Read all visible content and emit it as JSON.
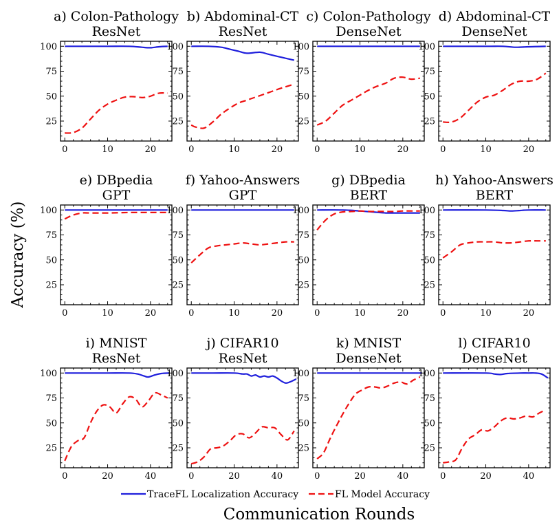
{
  "figure": {
    "ylabel": "Accuracy (%)",
    "xlabel": "Communication Rounds",
    "legend": [
      {
        "label": "TraceFL Localization Accuracy",
        "color": "#1f1fdc",
        "style": "solid"
      },
      {
        "label": "FL Model Accuracy",
        "color": "#ee1111",
        "style": "dashed"
      }
    ],
    "colors": {
      "traceFL": "#1f1fdc",
      "flModel": "#ee1111"
    }
  },
  "chart_data": [
    {
      "type": "line",
      "title_line1": "a) Colon-Pathology",
      "title_line2": "ResNet",
      "xlim": [
        -1,
        25
      ],
      "ylim": [
        5,
        105
      ],
      "xticks": [
        0,
        10,
        20
      ],
      "yticks": [
        25,
        50,
        75,
        100
      ],
      "series": [
        {
          "name": "TraceFL Localization Accuracy",
          "x": [
            0,
            5,
            10,
            15,
            18,
            20,
            22,
            24
          ],
          "y": [
            100,
            100,
            100,
            100,
            99,
            98.5,
            99.5,
            100
          ]
        },
        {
          "name": "FL Model Accuracy",
          "x": [
            0,
            2,
            4,
            6,
            8,
            10,
            12,
            14,
            16,
            18,
            19,
            20,
            22,
            24
          ],
          "y": [
            13,
            13.5,
            18,
            27,
            36,
            42,
            46,
            49,
            49.5,
            48.5,
            49,
            50,
            53,
            53
          ]
        }
      ]
    },
    {
      "type": "line",
      "title_line1": "b) Abdominal-CT",
      "title_line2": "ResNet",
      "xlim": [
        -1,
        25
      ],
      "ylim": [
        5,
        105
      ],
      "xticks": [
        0,
        10,
        20
      ],
      "yticks": [
        25,
        50,
        75,
        100
      ],
      "series": [
        {
          "name": "TraceFL Localization Accuracy",
          "x": [
            0,
            4,
            7,
            9,
            11,
            13,
            16,
            18,
            20,
            22,
            24
          ],
          "y": [
            100,
            100,
            99,
            97,
            95,
            93,
            94,
            92,
            90,
            88,
            86
          ]
        },
        {
          "name": "FL Model Accuracy",
          "x": [
            0,
            1,
            3,
            5,
            7,
            9,
            11,
            13,
            15,
            17,
            19,
            21,
            24
          ],
          "y": [
            21,
            19,
            18,
            24,
            32,
            38,
            43,
            46,
            49,
            52,
            55,
            58,
            62
          ]
        }
      ]
    },
    {
      "type": "line",
      "title_line1": "c) Colon-Pathology",
      "title_line2": "DenseNet",
      "xlim": [
        -1,
        25
      ],
      "ylim": [
        5,
        105
      ],
      "xticks": [
        0,
        10,
        20
      ],
      "yticks": [
        25,
        50,
        75,
        100
      ],
      "series": [
        {
          "name": "TraceFL Localization Accuracy",
          "x": [
            0,
            24
          ],
          "y": [
            100,
            100
          ]
        },
        {
          "name": "FL Model Accuracy",
          "x": [
            0,
            2,
            4,
            6,
            8,
            10,
            12,
            14,
            16,
            18,
            20,
            22,
            24
          ],
          "y": [
            21,
            25,
            33,
            41,
            46,
            51,
            56,
            60,
            63,
            68,
            69,
            67,
            68
          ]
        }
      ]
    },
    {
      "type": "line",
      "title_line1": "d) Abdominal-CT",
      "title_line2": "DenseNet",
      "xlim": [
        -1,
        25
      ],
      "ylim": [
        5,
        105
      ],
      "xticks": [
        0,
        10,
        20
      ],
      "yticks": [
        25,
        50,
        75,
        100
      ],
      "series": [
        {
          "name": "TraceFL Localization Accuracy",
          "x": [
            0,
            10,
            14,
            17,
            20,
            24
          ],
          "y": [
            100,
            100,
            100,
            99,
            99.5,
            100
          ]
        },
        {
          "name": "FL Model Accuracy",
          "x": [
            0,
            2,
            4,
            6,
            8,
            10,
            12,
            14,
            16,
            18,
            20,
            22,
            24
          ],
          "y": [
            24,
            24,
            28,
            36,
            44,
            49,
            51,
            56,
            62,
            65,
            65,
            67,
            73
          ]
        }
      ]
    },
    {
      "type": "line",
      "title_line1": "e) DBpedia",
      "title_line2": "GPT",
      "xlim": [
        -1,
        25
      ],
      "ylim": [
        5,
        105
      ],
      "xticks": [
        0,
        10,
        20
      ],
      "yticks": [
        25,
        50,
        75,
        100
      ],
      "series": [
        {
          "name": "TraceFL Localization Accuracy",
          "x": [
            0,
            24
          ],
          "y": [
            100,
            100
          ]
        },
        {
          "name": "FL Model Accuracy",
          "x": [
            0,
            2,
            4,
            6,
            10,
            15,
            20,
            24
          ],
          "y": [
            91,
            95,
            97,
            97,
            97,
            97.5,
            97.5,
            97.5
          ]
        }
      ]
    },
    {
      "type": "line",
      "title_line1": "f) Yahoo-Answers",
      "title_line2": "GPT",
      "xlim": [
        -1,
        25
      ],
      "ylim": [
        5,
        105
      ],
      "xticks": [
        0,
        10,
        20
      ],
      "yticks": [
        25,
        50,
        75,
        100
      ],
      "series": [
        {
          "name": "TraceFL Localization Accuracy",
          "x": [
            0,
            24
          ],
          "y": [
            100,
            100
          ]
        },
        {
          "name": "FL Model Accuracy",
          "x": [
            0,
            2,
            4,
            6,
            8,
            10,
            12,
            14,
            16,
            18,
            20,
            22,
            24
          ],
          "y": [
            47,
            55,
            62,
            64,
            65,
            66,
            67,
            66,
            65,
            66,
            67,
            68,
            68
          ]
        }
      ]
    },
    {
      "type": "line",
      "title_line1": "g) DBpedia",
      "title_line2": "BERT",
      "xlim": [
        -1,
        25
      ],
      "ylim": [
        5,
        105
      ],
      "xticks": [
        0,
        10,
        20
      ],
      "yticks": [
        25,
        50,
        75,
        100
      ],
      "series": [
        {
          "name": "TraceFL Localization Accuracy",
          "x": [
            0,
            6,
            10,
            13,
            16,
            18,
            20,
            24
          ],
          "y": [
            100,
            100,
            99,
            98,
            97,
            97,
            97,
            97
          ]
        },
        {
          "name": "FL Model Accuracy",
          "x": [
            0,
            2,
            4,
            6,
            8,
            10,
            12,
            14,
            16,
            18,
            20,
            22,
            24
          ],
          "y": [
            80,
            90,
            96,
            98,
            98.5,
            99,
            98.5,
            98.5,
            98.5,
            98.5,
            99,
            99,
            99
          ]
        }
      ]
    },
    {
      "type": "line",
      "title_line1": "h) Yahoo-Answers",
      "title_line2": "BERT",
      "xlim": [
        -1,
        25
      ],
      "ylim": [
        5,
        105
      ],
      "xticks": [
        0,
        10,
        20
      ],
      "yticks": [
        25,
        50,
        75,
        100
      ],
      "series": [
        {
          "name": "TraceFL Localization Accuracy",
          "x": [
            0,
            10,
            14,
            16,
            18,
            20,
            24
          ],
          "y": [
            100,
            100,
            99.5,
            99,
            99.5,
            100,
            100
          ]
        },
        {
          "name": "FL Model Accuracy",
          "x": [
            0,
            2,
            4,
            6,
            8,
            10,
            12,
            14,
            16,
            18,
            20,
            22,
            24
          ],
          "y": [
            52,
            58,
            65,
            67,
            68,
            68,
            68,
            67,
            67,
            68,
            69,
            69,
            69
          ]
        }
      ]
    },
    {
      "type": "line",
      "title_line1": "i) MNIST",
      "title_line2": "ResNet",
      "xlim": [
        -2,
        50
      ],
      "ylim": [
        5,
        105
      ],
      "xticks": [
        0,
        20,
        40
      ],
      "yticks": [
        25,
        50,
        75,
        100
      ],
      "series": [
        {
          "name": "TraceFL Localization Accuracy",
          "x": [
            0,
            10,
            20,
            30,
            34,
            37,
            39,
            42,
            45,
            49
          ],
          "y": [
            100,
            100,
            100,
            100,
            99,
            97,
            96,
            98,
            99.5,
            100
          ]
        },
        {
          "name": "FL Model Accuracy",
          "x": [
            0,
            3,
            6,
            9,
            12,
            15,
            18,
            21,
            24,
            27,
            30,
            33,
            36,
            39,
            42,
            45,
            48
          ],
          "y": [
            12,
            26,
            32,
            35,
            50,
            62,
            68,
            66,
            60,
            69,
            76,
            74,
            66,
            72,
            80,
            78,
            75
          ]
        }
      ]
    },
    {
      "type": "line",
      "title_line1": "j) CIFAR10",
      "title_line2": "ResNet",
      "xlim": [
        -2,
        50
      ],
      "ylim": [
        5,
        105
      ],
      "xticks": [
        0,
        20,
        40
      ],
      "yticks": [
        25,
        50,
        75,
        100
      ],
      "series": [
        {
          "name": "TraceFL Localization Accuracy",
          "x": [
            0,
            10,
            20,
            24,
            26,
            28,
            30,
            32,
            34,
            36,
            38,
            40,
            42,
            44,
            46,
            49
          ],
          "y": [
            100,
            100,
            100,
            99,
            99,
            97,
            98,
            96,
            97,
            96,
            97,
            95,
            92,
            90,
            91,
            94
          ]
        },
        {
          "name": "FL Model Accuracy",
          "x": [
            0,
            3,
            6,
            9,
            12,
            15,
            18,
            21,
            24,
            27,
            30,
            33,
            36,
            39,
            42,
            45,
            48
          ],
          "y": [
            9,
            11,
            16,
            24,
            25,
            27,
            32,
            38,
            39,
            35,
            40,
            46,
            45,
            45,
            38,
            33,
            42
          ]
        }
      ]
    },
    {
      "type": "line",
      "title_line1": "k) MNIST",
      "title_line2": "DenseNet",
      "xlim": [
        -2,
        50
      ],
      "ylim": [
        5,
        105
      ],
      "xticks": [
        0,
        20,
        40
      ],
      "yticks": [
        25,
        50,
        75,
        100
      ],
      "series": [
        {
          "name": "TraceFL Localization Accuracy",
          "x": [
            0,
            49
          ],
          "y": [
            100,
            100
          ]
        },
        {
          "name": "FL Model Accuracy",
          "x": [
            0,
            3,
            6,
            9,
            12,
            15,
            18,
            21,
            24,
            27,
            30,
            33,
            36,
            39,
            42,
            45,
            48
          ],
          "y": [
            14,
            20,
            34,
            47,
            59,
            70,
            79,
            83,
            86,
            86,
            85,
            87,
            90,
            91,
            89,
            93,
            96
          ]
        }
      ]
    },
    {
      "type": "line",
      "title_line1": "l) CIFAR10",
      "title_line2": "DenseNet",
      "xlim": [
        -2,
        50
      ],
      "ylim": [
        5,
        105
      ],
      "xticks": [
        0,
        20,
        40
      ],
      "yticks": [
        25,
        50,
        75,
        100
      ],
      "series": [
        {
          "name": "TraceFL Localization Accuracy",
          "x": [
            0,
            20,
            24,
            27,
            30,
            36,
            40,
            43,
            46,
            49
          ],
          "y": [
            100,
            100,
            99,
            98.5,
            99.5,
            100,
            100,
            100,
            99,
            95
          ]
        },
        {
          "name": "FL Model Accuracy",
          "x": [
            0,
            3,
            6,
            9,
            12,
            15,
            18,
            21,
            24,
            27,
            30,
            33,
            36,
            39,
            42,
            45,
            48
          ],
          "y": [
            10,
            11,
            13,
            25,
            34,
            38,
            43,
            42,
            46,
            52,
            55,
            54,
            55,
            57,
            56,
            60,
            63
          ]
        }
      ]
    }
  ]
}
